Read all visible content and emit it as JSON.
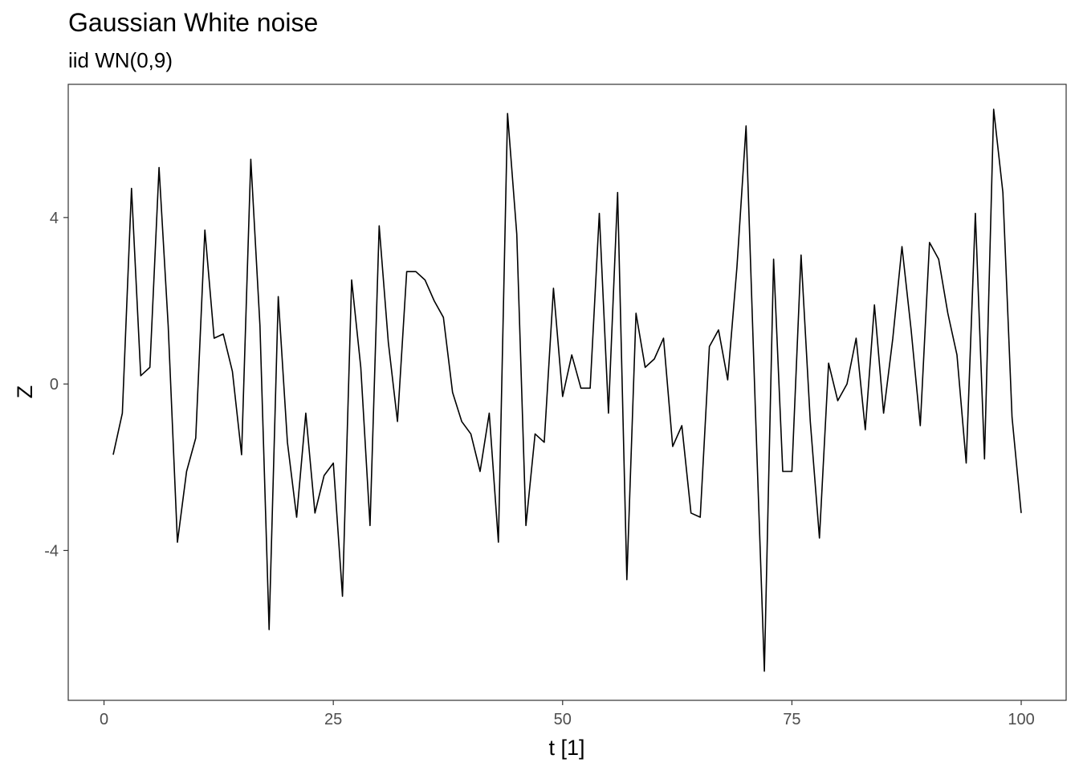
{
  "chart_data": {
    "type": "line",
    "title": "Gaussian White noise",
    "subtitle": "iid WN(0,9)",
    "xlabel": "t [1]",
    "ylabel": "Z",
    "xlim": [
      -3.9,
      104.9
    ],
    "ylim": [
      -7.6,
      7.2
    ],
    "x_ticks": [
      0,
      25,
      50,
      75,
      100
    ],
    "y_ticks": [
      -4,
      0,
      4
    ],
    "grid": false,
    "line_color": "#000000",
    "series": [
      {
        "x": [
          1,
          2,
          3,
          4,
          5,
          6,
          7,
          8,
          9,
          10,
          11,
          12,
          13,
          14,
          15,
          16,
          17,
          18,
          19,
          20,
          21,
          22,
          23,
          24,
          25,
          26,
          27,
          28,
          29,
          30,
          31,
          32,
          33,
          34,
          35,
          36,
          37,
          38,
          39,
          40,
          41,
          42,
          43,
          44,
          45,
          46,
          47,
          48,
          49,
          50,
          51,
          52,
          53,
          54,
          55,
          56,
          57,
          58,
          59,
          60,
          61,
          62,
          63,
          64,
          65,
          66,
          67,
          68,
          69,
          70,
          71,
          72,
          73,
          74,
          75,
          76,
          77,
          78,
          79,
          80,
          81,
          82,
          83,
          84,
          85,
          86,
          87,
          88,
          89,
          90,
          91,
          92,
          93,
          94,
          95,
          96,
          97,
          98,
          99,
          100
        ],
        "y": [
          -1.7,
          -0.7,
          4.7,
          0.2,
          0.4,
          5.2,
          1.4,
          -3.8,
          -2.1,
          -1.3,
          3.7,
          1.1,
          1.2,
          0.3,
          -1.7,
          5.4,
          1.4,
          -5.9,
          2.1,
          -1.4,
          -3.2,
          -0.7,
          -3.1,
          -2.2,
          -1.9,
          -5.1,
          2.5,
          0.4,
          -3.4,
          3.8,
          1.0,
          -0.9,
          2.7,
          2.7,
          2.5,
          2.0,
          1.6,
          -0.2,
          -0.9,
          -1.2,
          -2.1,
          -0.7,
          -3.8,
          6.5,
          3.6,
          -3.4,
          -1.2,
          -1.4,
          2.3,
          -0.3,
          0.7,
          -0.1,
          -0.1,
          4.1,
          -0.7,
          4.6,
          -4.7,
          1.7,
          0.4,
          0.6,
          1.1,
          -1.5,
          -1.0,
          -3.1,
          -3.2,
          0.9,
          1.3,
          0.1,
          2.8,
          6.2,
          -0.5,
          -6.9,
          3.0,
          -2.1,
          -2.1,
          3.1,
          -0.9,
          -3.7,
          0.5,
          -0.4,
          0.0,
          1.1,
          -1.1,
          1.9,
          -0.7,
          1.1,
          3.3,
          1.3,
          -1.0,
          3.4,
          3.0,
          1.7,
          0.7,
          -1.9,
          4.1,
          -1.8,
          6.6,
          4.6,
          -0.8,
          -3.1
        ]
      }
    ]
  }
}
